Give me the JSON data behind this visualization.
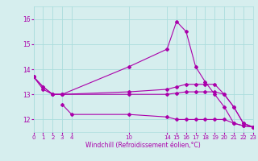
{
  "background_color": "#d6eeee",
  "grid_color": "#aadddd",
  "line_color": "#aa00aa",
  "xlabel": "Windchill (Refroidissement éolien,°C)",
  "xlim": [
    0,
    23
  ],
  "ylim": [
    11.5,
    16.5
  ],
  "yticks": [
    12,
    13,
    14,
    15,
    16
  ],
  "xticks": [
    0,
    1,
    2,
    3,
    4,
    10,
    14,
    15,
    16,
    17,
    18,
    19,
    20,
    21,
    22,
    23
  ],
  "series": [
    {
      "x": [
        0,
        1,
        2,
        3,
        10,
        14,
        15,
        16,
        17,
        18,
        19,
        20,
        21,
        22,
        23
      ],
      "y": [
        13.7,
        13.3,
        13.0,
        13.0,
        14.1,
        14.8,
        15.9,
        15.5,
        14.1,
        13.5,
        13.0,
        12.5,
        11.85,
        11.75,
        11.7
      ]
    },
    {
      "x": [
        0,
        1,
        2,
        3,
        10,
        14,
        15,
        16,
        17,
        18,
        19,
        20,
        21,
        22,
        23
      ],
      "y": [
        13.7,
        13.3,
        13.0,
        13.0,
        13.1,
        13.2,
        13.3,
        13.4,
        13.4,
        13.4,
        13.4,
        13.0,
        12.5,
        11.85,
        11.7
      ]
    },
    {
      "x": [
        3,
        4,
        10,
        14,
        15,
        16,
        17,
        18,
        19,
        20,
        21,
        22,
        23
      ],
      "y": [
        12.6,
        12.2,
        12.2,
        12.1,
        12.0,
        12.0,
        12.0,
        12.0,
        12.0,
        12.0,
        11.85,
        11.75,
        11.7
      ]
    },
    {
      "x": [
        0,
        1,
        2,
        3,
        10,
        14,
        15,
        16,
        17,
        18,
        19,
        20,
        21,
        22,
        23
      ],
      "y": [
        13.7,
        13.2,
        13.0,
        13.0,
        13.0,
        13.0,
        13.05,
        13.1,
        13.1,
        13.1,
        13.1,
        13.0,
        12.5,
        11.85,
        11.7
      ]
    }
  ]
}
